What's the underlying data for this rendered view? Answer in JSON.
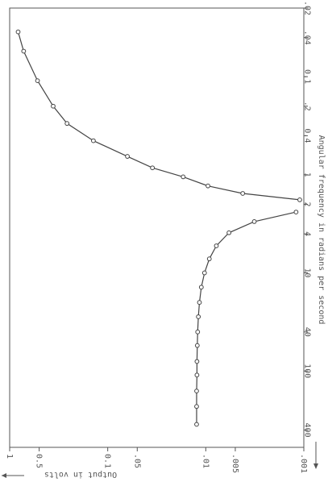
{
  "chart_data": {
    "type": "line",
    "orientation": "rotated 90 degrees clockwise (frequency axis runs top to bottom on the right edge, output axis runs left to right along the bottom)",
    "xlabel": "Angular frequency in radians per second",
    "ylabel": "Output in volts",
    "x_scale": "log",
    "y_scale": "log",
    "xlim": [
      0.02,
      600
    ],
    "ylim": [
      0.001,
      1
    ],
    "grid": false,
    "x_ticks": [
      {
        "value": 0.02,
        "label": ".02"
      },
      {
        "value": 0.04,
        "label": ".04"
      },
      {
        "value": 0.1,
        "label": "0.1"
      },
      {
        "value": 0.2,
        "label": ".2"
      },
      {
        "value": 0.4,
        "label": "0.4"
      },
      {
        "value": 1,
        "label": "1"
      },
      {
        "value": 2,
        "label": "2"
      },
      {
        "value": 4,
        "label": "4"
      },
      {
        "value": 10,
        "label": "10"
      },
      {
        "value": 40,
        "label": "40"
      },
      {
        "value": 100,
        "label": "100"
      },
      {
        "value": 400,
        "label": "400"
      }
    ],
    "y_ticks": [
      {
        "value": 1,
        "label": "1"
      },
      {
        "value": 0.5,
        "label": "0.5"
      },
      {
        "value": 0.1,
        "label": "0.1"
      },
      {
        "value": 0.05,
        "label": ".05"
      },
      {
        "value": 0.01,
        "label": ".01"
      },
      {
        "value": 0.005,
        "label": ".005"
      },
      {
        "value": 0.001,
        "label": ".001"
      }
    ],
    "series": [
      {
        "x": [
          0.035,
          0.055,
          0.11,
          0.2,
          0.3,
          0.45,
          0.65,
          0.85,
          1.05,
          1.3,
          1.55,
          1.8
        ],
        "y": [
          0.82,
          0.72,
          0.52,
          0.36,
          0.26,
          0.14,
          0.063,
          0.035,
          0.017,
          0.0095,
          0.0042,
          0.0011
        ]
      },
      {
        "x": [
          2.4,
          3.0,
          3.9,
          5.3,
          7.2,
          10,
          14,
          20,
          28,
          40,
          55,
          80,
          110,
          160,
          230,
          350
        ],
        "y": [
          0.0012,
          0.0032,
          0.0058,
          0.0078,
          0.0092,
          0.0103,
          0.0111,
          0.0116,
          0.0119,
          0.0121,
          0.0122,
          0.0123,
          0.0123,
          0.0124,
          0.0124,
          0.0124
        ]
      }
    ],
    "marker": "open-circle",
    "line_color": "#444444"
  }
}
